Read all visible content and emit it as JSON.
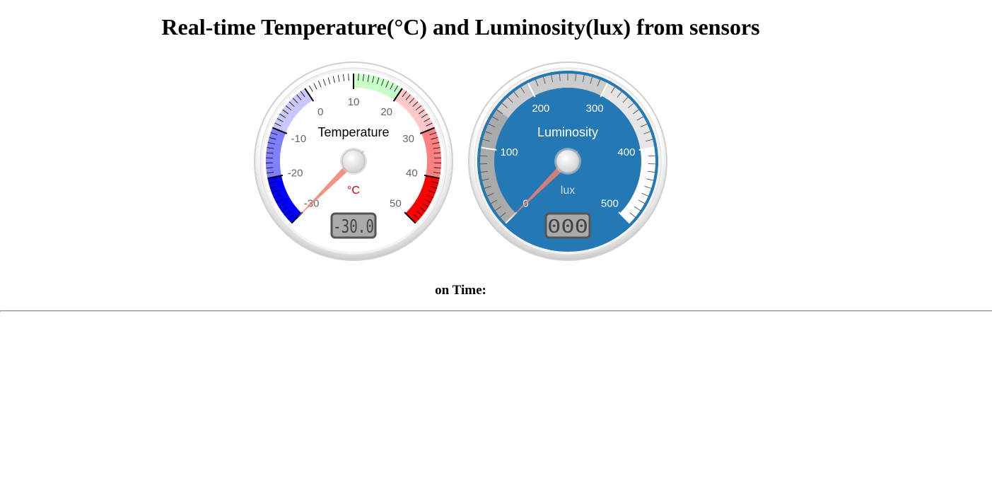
{
  "page": {
    "title": "Real-time Temperature(°C) and Luminosity(lux) from sensors",
    "time_label": "on Time:",
    "time_value": ""
  },
  "gauges": [
    {
      "id": "temperature",
      "title": "Temperature",
      "units": "°C",
      "value": -30,
      "display_value": "-30.0",
      "min": -30,
      "max": 50,
      "major_ticks": [
        "-30",
        "-20",
        "-10",
        "0",
        "10",
        "20",
        "30",
        "40",
        "50"
      ],
      "minor_ticks_per_major": 10,
      "highlights": [
        {
          "from": -30,
          "to": -20,
          "color": "#0000ff"
        },
        {
          "from": -20,
          "to": -10,
          "color": "#8080ff"
        },
        {
          "from": -10,
          "to": 0,
          "color": "#c8c8ff"
        },
        {
          "from": 0,
          "to": 10,
          "color": "#ffffff"
        },
        {
          "from": 10,
          "to": 20,
          "color": "#c8ffc8"
        },
        {
          "from": 20,
          "to": 30,
          "color": "#ffc8c8"
        },
        {
          "from": 30,
          "to": 40,
          "color": "#ff8080"
        },
        {
          "from": 40,
          "to": 50,
          "color": "#ff0000"
        }
      ],
      "colors": {
        "plate": "#ffffff",
        "title": "#000000",
        "units": "#cc0000",
        "numbers": "#666666",
        "needle": "#f08070"
      }
    },
    {
      "id": "luminosity",
      "title": "Luminosity",
      "units": "lux",
      "value": 0,
      "display_value": "000",
      "min": 0,
      "max": 500,
      "major_ticks": [
        "0",
        "100",
        "200",
        "300",
        "400",
        "500"
      ],
      "minor_ticks_per_major": 10,
      "highlights": [
        {
          "from": 0,
          "to": 150,
          "color": "#aaaaaa"
        },
        {
          "from": 150,
          "to": 300,
          "color": "#cccccc"
        },
        {
          "from": 300,
          "to": 400,
          "color": "#e6e6e6"
        },
        {
          "from": 400,
          "to": 500,
          "color": "#ffffff"
        }
      ],
      "colors": {
        "plate": "#2478b4",
        "title": "#ffffff",
        "units": "#dddddd",
        "numbers": "#ffffff",
        "needle": "#f08070"
      }
    }
  ]
}
